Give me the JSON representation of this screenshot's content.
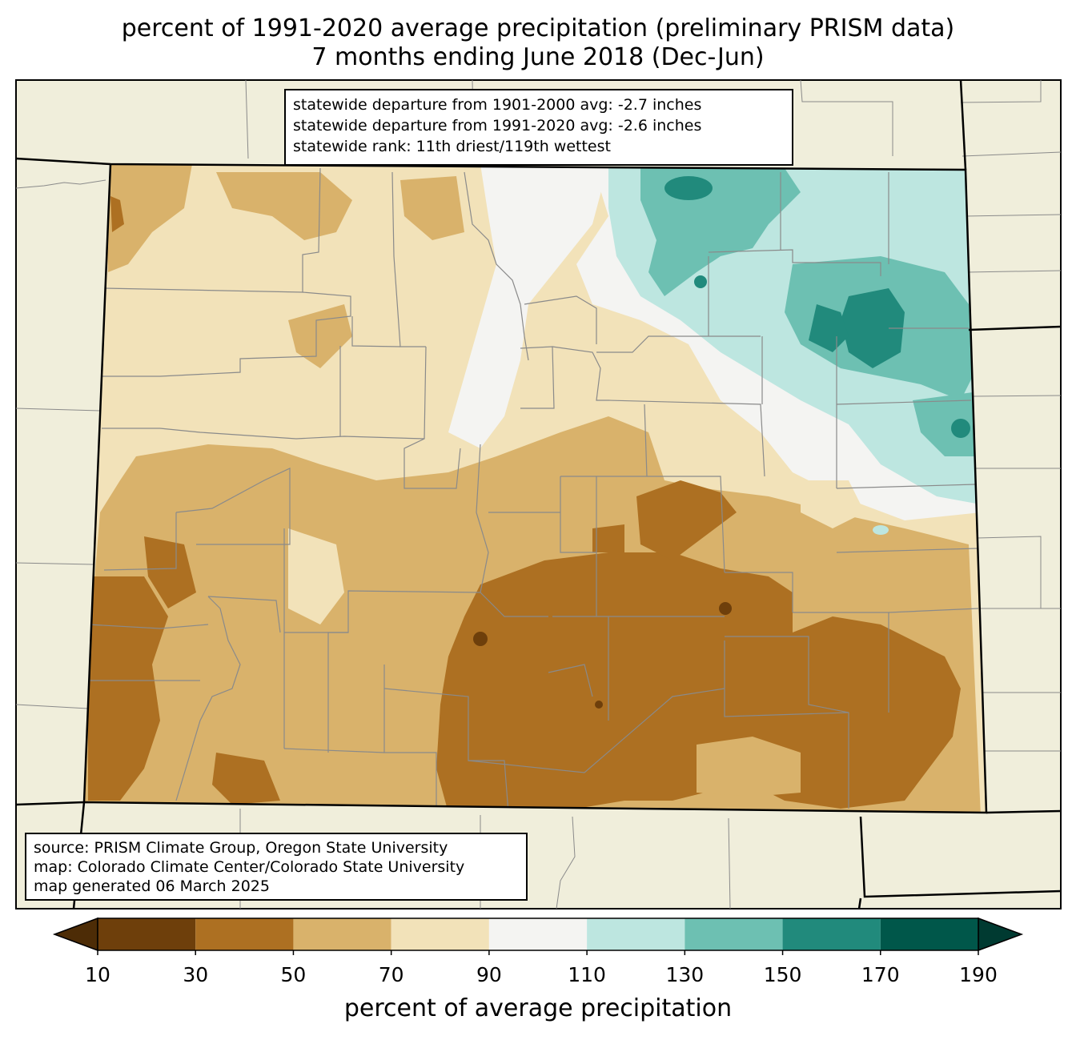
{
  "title": {
    "line1": "percent of 1991-2020 average precipitation (preliminary PRISM data)",
    "line2": "7 months ending June 2018 (Dec-Jun)"
  },
  "stats_box": {
    "line1": "statewide departure from 1901-2000 avg: -2.7 inches",
    "line2": "statewide departure from 1991-2020 avg: -2.6 inches",
    "line3": "statewide rank: 11th driest/119th wettest"
  },
  "source_box": {
    "line1": "source: PRISM Climate Group, Oregon State University",
    "line2": "map: Colorado Climate Center/Colorado State University",
    "line3": "map generated 06 March 2025"
  },
  "colorbar": {
    "label": "percent of average precipitation",
    "ticks": [
      "10",
      "30",
      "50",
      "70",
      "90",
      "110",
      "130",
      "150",
      "170",
      "190"
    ],
    "colors": [
      "#6e3f0b",
      "#ad7022",
      "#d9b26b",
      "#f2e2b9",
      "#f4f4f2",
      "#bde6e0",
      "#6dc0b2",
      "#218a7c",
      "#00574a"
    ],
    "under_color": "#4d2c06",
    "over_color": "#003a31"
  },
  "map_colors": {
    "background": "#f0eedb",
    "dry_10_30": "#6e3f0b",
    "dry_30_50": "#ad7022",
    "dry_50_70": "#d9b26b",
    "dry_70_90": "#f2e2b9",
    "near_90_110": "#f4f4f2",
    "wet_110_130": "#bde6e0",
    "wet_130_150": "#6dc0b2",
    "wet_150_170": "#218a7c"
  }
}
